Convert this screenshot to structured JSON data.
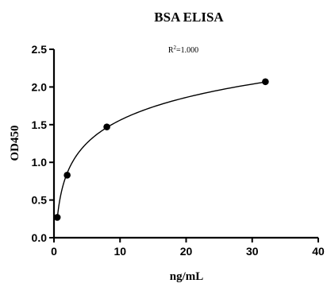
{
  "chart_data": {
    "type": "scatter",
    "title": "BSA ELISA",
    "xlabel": "ng/mL",
    "ylabel": "OD450",
    "xlim": [
      0,
      40
    ],
    "ylim": [
      0,
      2.5
    ],
    "x_ticks": [
      0,
      10,
      20,
      30,
      40
    ],
    "y_ticks": [
      "0.0",
      "0.5",
      "1.0",
      "1.5",
      "2.0",
      "2.5"
    ],
    "grid": false,
    "annotation": {
      "base": "R",
      "sup": "2",
      "rest": "=1.000"
    },
    "series": [
      {
        "x": [
          0.5,
          2,
          8,
          32
        ],
        "y": [
          0.27,
          0.83,
          1.47,
          2.07
        ],
        "fit": "logarithmic curve"
      }
    ]
  }
}
